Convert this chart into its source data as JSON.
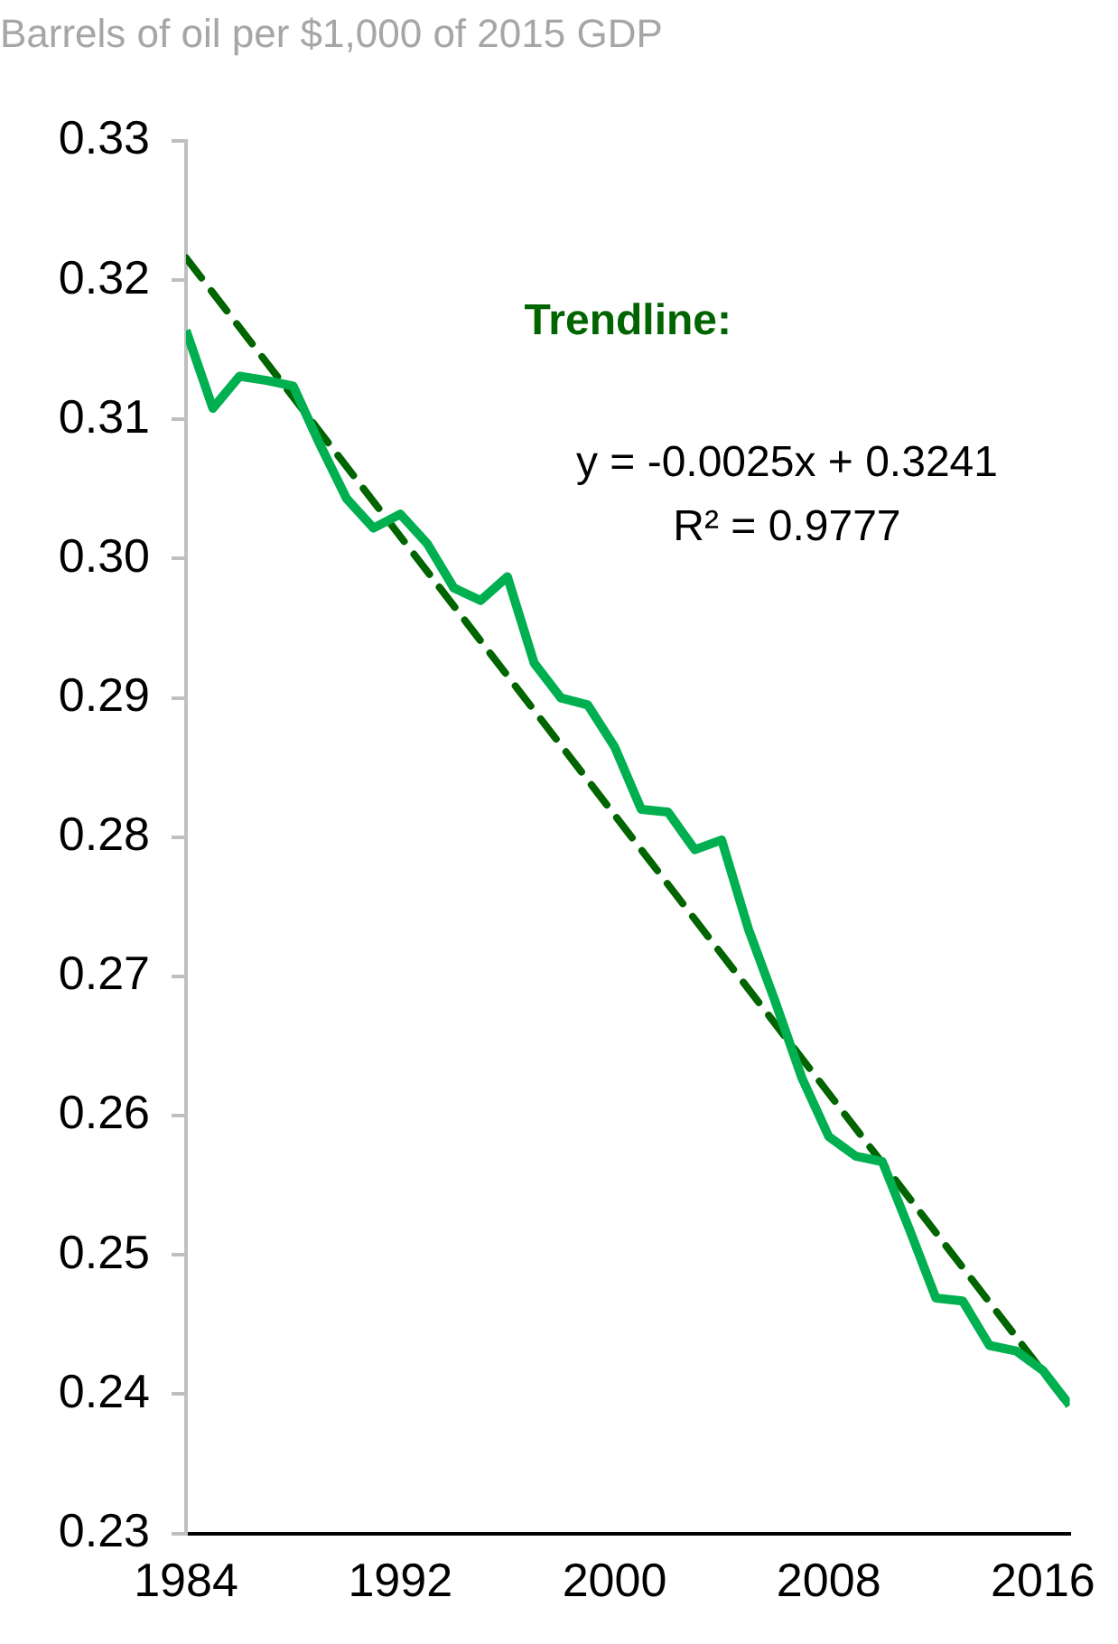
{
  "chart_data": {
    "type": "line",
    "title": "Barrels of oil per $1,000 of 2015 GDP",
    "x": [
      1984,
      1985,
      1986,
      1987,
      1988,
      1989,
      1990,
      1991,
      1992,
      1993,
      1994,
      1995,
      1996,
      1997,
      1998,
      1999,
      2000,
      2001,
      2002,
      2003,
      2004,
      2005,
      2006,
      2007,
      2008,
      2009,
      2010,
      2011,
      2012,
      2013,
      2014,
      2015,
      2016,
      2017
    ],
    "series": [
      {
        "color": "#00b050",
        "line_style": "solid",
        "values": [
          0.3164,
          0.3108,
          0.3131,
          0.3128,
          0.3124,
          0.3082,
          0.3043,
          0.3022,
          0.3032,
          0.3011,
          0.2979,
          0.297,
          0.2987,
          0.2925,
          0.29,
          0.2895,
          0.2865,
          0.282,
          0.2818,
          0.2791,
          0.2798,
          0.2734,
          0.2682,
          0.2627,
          0.2585,
          0.2571,
          0.2567,
          0.2519,
          0.2469,
          0.2467,
          0.2435,
          0.2431,
          0.2417,
          0.2392
        ]
      },
      {
        "type": "line",
        "color": "#006400",
        "line_style": "dashed",
        "x": [
          1984,
          2017
        ],
        "values": [
          0.3216,
          0.2391
        ]
      }
    ],
    "xlim": [
      1984,
      2017
    ],
    "xticks": [
      1984,
      1992,
      2000,
      2008,
      2016
    ],
    "ylim": [
      0.23,
      0.33
    ],
    "yticks": [
      0.23,
      0.24,
      0.25,
      0.26,
      0.27,
      0.28,
      0.29,
      {
        "value": 0.3,
        "label": "0.30"
      },
      0.31,
      0.32,
      0.33
    ],
    "annotations": [
      "Trendline:",
      "y = -0.0025x + 0.3241",
      "R² = 0.9777"
    ],
    "grid": false,
    "legend": false,
    "marker": "none"
  }
}
